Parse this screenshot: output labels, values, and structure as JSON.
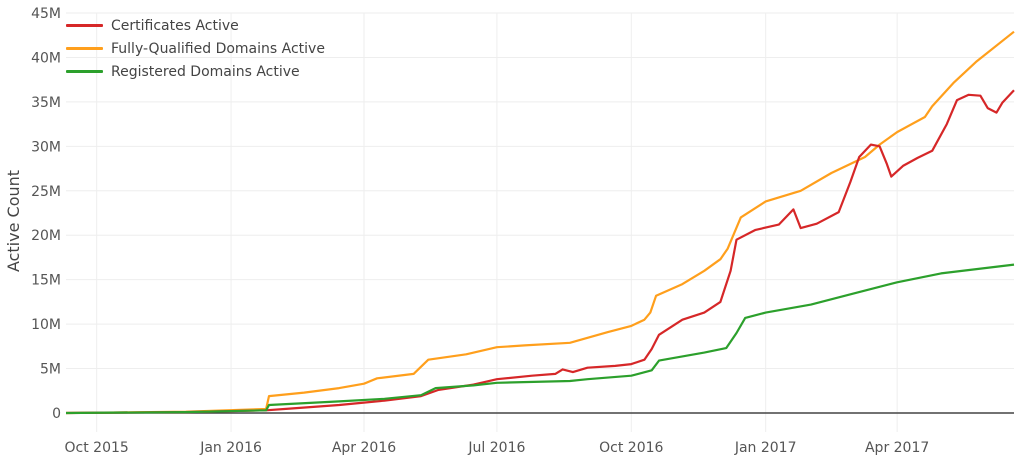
{
  "chart_data": {
    "type": "line",
    "title": "",
    "xlabel": "",
    "ylabel": "Active Count",
    "ylim": [
      0,
      45000000
    ],
    "y_ticks": [
      {
        "value": 0,
        "label": "0"
      },
      {
        "value": 5000000,
        "label": "5M"
      },
      {
        "value": 10000000,
        "label": "10M"
      },
      {
        "value": 15000000,
        "label": "15M"
      },
      {
        "value": 20000000,
        "label": "20M"
      },
      {
        "value": 25000000,
        "label": "25M"
      },
      {
        "value": 30000000,
        "label": "30M"
      },
      {
        "value": 35000000,
        "label": "35M"
      },
      {
        "value": 40000000,
        "label": "40M"
      },
      {
        "value": 45000000,
        "label": "45M"
      }
    ],
    "x_ticks": [
      {
        "date": "2015-10-01",
        "label": "Oct 2015"
      },
      {
        "date": "2016-01-01",
        "label": "Jan 2016"
      },
      {
        "date": "2016-04-01",
        "label": "Apr 2016"
      },
      {
        "date": "2016-07-01",
        "label": "Jul 2016"
      },
      {
        "date": "2016-10-01",
        "label": "Oct 2016"
      },
      {
        "date": "2017-01-01",
        "label": "Jan 2017"
      },
      {
        "date": "2017-04-01",
        "label": "Apr 2017"
      }
    ],
    "xlim": [
      "2015-09-10",
      "2017-06-20"
    ],
    "grid": true,
    "legend_position": "top-left",
    "series": [
      {
        "name": "Certificates Active",
        "color": "#d62728",
        "points": [
          [
            "2015-09-10",
            0
          ],
          [
            "2015-12-01",
            0.1
          ],
          [
            "2016-01-25",
            0.3
          ],
          [
            "2016-02-10",
            0.5
          ],
          [
            "2016-03-15",
            0.9
          ],
          [
            "2016-04-15",
            1.4
          ],
          [
            "2016-05-10",
            1.9
          ],
          [
            "2016-05-22",
            2.6
          ],
          [
            "2016-06-15",
            3.2
          ],
          [
            "2016-07-01",
            3.8
          ],
          [
            "2016-07-25",
            4.2
          ],
          [
            "2016-08-10",
            4.4
          ],
          [
            "2016-08-15",
            4.9
          ],
          [
            "2016-08-22",
            4.6
          ],
          [
            "2016-09-01",
            5.1
          ],
          [
            "2016-09-20",
            5.3
          ],
          [
            "2016-10-01",
            5.5
          ],
          [
            "2016-10-10",
            6.0
          ],
          [
            "2016-10-15",
            7.2
          ],
          [
            "2016-10-20",
            8.8
          ],
          [
            "2016-11-05",
            10.5
          ],
          [
            "2016-11-20",
            11.3
          ],
          [
            "2016-12-01",
            12.5
          ],
          [
            "2016-12-08",
            16.0
          ],
          [
            "2016-12-12",
            19.5
          ],
          [
            "2016-12-25",
            20.6
          ],
          [
            "2017-01-10",
            21.2
          ],
          [
            "2017-01-20",
            22.9
          ],
          [
            "2017-01-25",
            20.8
          ],
          [
            "2017-02-05",
            21.3
          ],
          [
            "2017-02-20",
            22.6
          ],
          [
            "2017-02-28",
            26.0
          ],
          [
            "2017-03-06",
            28.8
          ],
          [
            "2017-03-14",
            30.2
          ],
          [
            "2017-03-20",
            30.0
          ],
          [
            "2017-03-25",
            28.0
          ],
          [
            "2017-03-28",
            26.6
          ],
          [
            "2017-04-05",
            27.8
          ],
          [
            "2017-04-15",
            28.7
          ],
          [
            "2017-04-25",
            29.5
          ],
          [
            "2017-05-05",
            32.5
          ],
          [
            "2017-05-12",
            35.2
          ],
          [
            "2017-05-20",
            35.8
          ],
          [
            "2017-05-28",
            35.7
          ],
          [
            "2017-06-02",
            34.3
          ],
          [
            "2017-06-08",
            33.8
          ],
          [
            "2017-06-12",
            34.9
          ],
          [
            "2017-06-20",
            36.3
          ]
        ]
      },
      {
        "name": "Fully-Qualified Domains Active",
        "color": "#ff9f1c",
        "points": [
          [
            "2015-09-10",
            0
          ],
          [
            "2015-12-01",
            0.15
          ],
          [
            "2016-01-25",
            0.45
          ],
          [
            "2016-01-27",
            1.9
          ],
          [
            "2016-02-20",
            2.3
          ],
          [
            "2016-03-15",
            2.8
          ],
          [
            "2016-04-01",
            3.3
          ],
          [
            "2016-04-10",
            3.9
          ],
          [
            "2016-05-05",
            4.4
          ],
          [
            "2016-05-15",
            6.0
          ],
          [
            "2016-06-10",
            6.6
          ],
          [
            "2016-07-01",
            7.4
          ],
          [
            "2016-07-20",
            7.6
          ],
          [
            "2016-08-20",
            7.9
          ],
          [
            "2016-09-15",
            9.1
          ],
          [
            "2016-10-01",
            9.8
          ],
          [
            "2016-10-10",
            10.5
          ],
          [
            "2016-10-14",
            11.3
          ],
          [
            "2016-10-18",
            13.2
          ],
          [
            "2016-11-05",
            14.5
          ],
          [
            "2016-11-20",
            16.0
          ],
          [
            "2016-12-01",
            17.3
          ],
          [
            "2016-12-06",
            18.5
          ],
          [
            "2016-12-15",
            22.0
          ],
          [
            "2017-01-01",
            23.8
          ],
          [
            "2017-01-25",
            25.0
          ],
          [
            "2017-02-15",
            27.0
          ],
          [
            "2017-03-10",
            28.8
          ],
          [
            "2017-03-20",
            30.2
          ],
          [
            "2017-04-01",
            31.6
          ],
          [
            "2017-04-20",
            33.3
          ],
          [
            "2017-04-25",
            34.5
          ],
          [
            "2017-05-10",
            37.2
          ],
          [
            "2017-05-25",
            39.5
          ],
          [
            "2017-06-20",
            42.9
          ]
        ]
      },
      {
        "name": "Registered Domains Active",
        "color": "#2ca02c",
        "points": [
          [
            "2015-09-10",
            0
          ],
          [
            "2015-12-01",
            0.1
          ],
          [
            "2016-01-25",
            0.3
          ],
          [
            "2016-01-27",
            0.9
          ],
          [
            "2016-03-15",
            1.3
          ],
          [
            "2016-04-15",
            1.6
          ],
          [
            "2016-05-10",
            2.0
          ],
          [
            "2016-05-20",
            2.8
          ],
          [
            "2016-06-15",
            3.1
          ],
          [
            "2016-07-01",
            3.4
          ],
          [
            "2016-08-20",
            3.6
          ],
          [
            "2016-09-01",
            3.8
          ],
          [
            "2016-10-01",
            4.2
          ],
          [
            "2016-10-15",
            4.8
          ],
          [
            "2016-10-20",
            5.9
          ],
          [
            "2016-11-20",
            6.8
          ],
          [
            "2016-12-05",
            7.3
          ],
          [
            "2016-12-12",
            9.0
          ],
          [
            "2016-12-18",
            10.7
          ],
          [
            "2017-01-01",
            11.3
          ],
          [
            "2017-02-01",
            12.2
          ],
          [
            "2017-03-01",
            13.4
          ],
          [
            "2017-04-01",
            14.7
          ],
          [
            "2017-05-01",
            15.7
          ],
          [
            "2017-06-20",
            16.7
          ]
        ]
      }
    ]
  },
  "legend": {
    "items": [
      {
        "label": "Certificates Active",
        "color": "#d62728"
      },
      {
        "label": "Fully-Qualified Domains Active",
        "color": "#ff9f1c"
      },
      {
        "label": "Registered Domains Active",
        "color": "#2ca02c"
      }
    ]
  }
}
